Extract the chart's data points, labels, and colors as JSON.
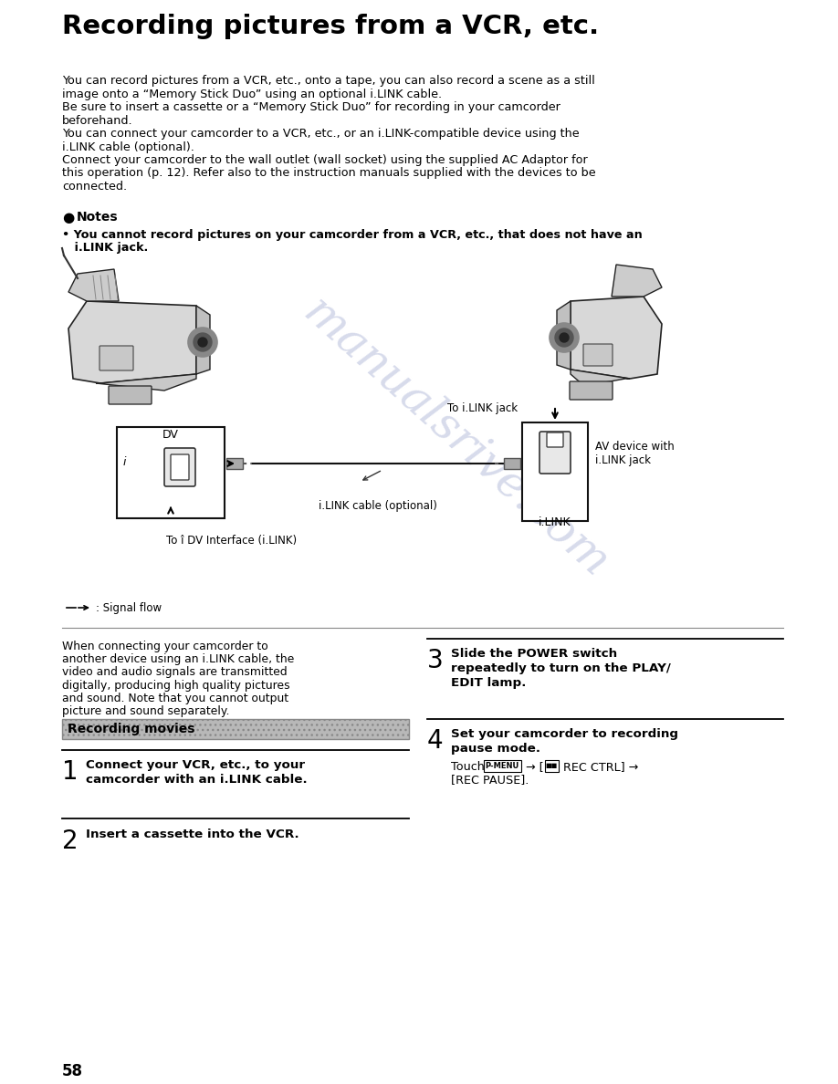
{
  "bg_color": "#ffffff",
  "title": "Recording pictures from a VCR, etc.",
  "body_fontsize": 9.2,
  "watermark_text": "manualsrive.com",
  "watermark_color": "#b0b8d8",
  "watermark_alpha": 0.5,
  "para1_lines": [
    "You can record pictures from a VCR, etc., onto a tape, you can also record a scene as a still",
    "image onto a “Memory Stick Duo” using an optional i.LINK cable.",
    "Be sure to insert a cassette or a “Memory Stick Duo” for recording in your camcorder",
    "beforehand.",
    "You can connect your camcorder to a VCR, etc., or an i.LINK-compatible device using the",
    "i.LINK cable (optional).",
    "Connect your camcorder to the wall outlet (wall socket) using the supplied AC Adaptor for",
    "this operation (p. 12). Refer also to the instruction manuals supplied with the devices to be",
    "connected."
  ],
  "notes_header": "Notes",
  "notes_bullet_line1": "• You cannot record pictures on your camcorder from a VCR, etc., that does not have an",
  "notes_bullet_line2": "   i.LINK jack.",
  "dv_label": "DV",
  "to_dv_label": "To î DV Interface (i.LINK)",
  "to_ilink_label": "To i.LINK jack",
  "ilink_label": "i.LINK",
  "av_device_label_1": "AV device with",
  "av_device_label_2": "i.LINK jack",
  "ilink_cable_text": "i.LINK cable (optional)",
  "signal_flow_text": ": Signal flow",
  "left_col_lines": [
    "When connecting your camcorder to",
    "another device using an i.LINK cable, the",
    "video and audio signals are transmitted",
    "digitally, producing high quality pictures",
    "and sound. Note that you cannot output",
    "picture and sound separately."
  ],
  "section_header": "Recording movies",
  "step1_num": "1",
  "step1_line1": "Connect your VCR, etc., to your",
  "step1_line2": "camcorder with an i.LINK cable.",
  "step2_num": "2",
  "step2_text": "Insert a cassette into the VCR.",
  "step3_num": "3",
  "step3_line1": "Slide the POWER switch",
  "step3_line2": "repeatedly to turn on the PLAY/",
  "step3_line3": "EDIT lamp.",
  "step4_num": "4",
  "step4_line1": "Set your camcorder to recording",
  "step4_line2": "pause mode.",
  "step4_sub1": "Touch",
  "step4_pmenu": "P-MENU",
  "step4_mid": " → [",
  "step4_rec": "■■",
  "step4_end": " REC CTRL] →",
  "step4_sub2": "[REC PAUSE].",
  "page_num": "58"
}
